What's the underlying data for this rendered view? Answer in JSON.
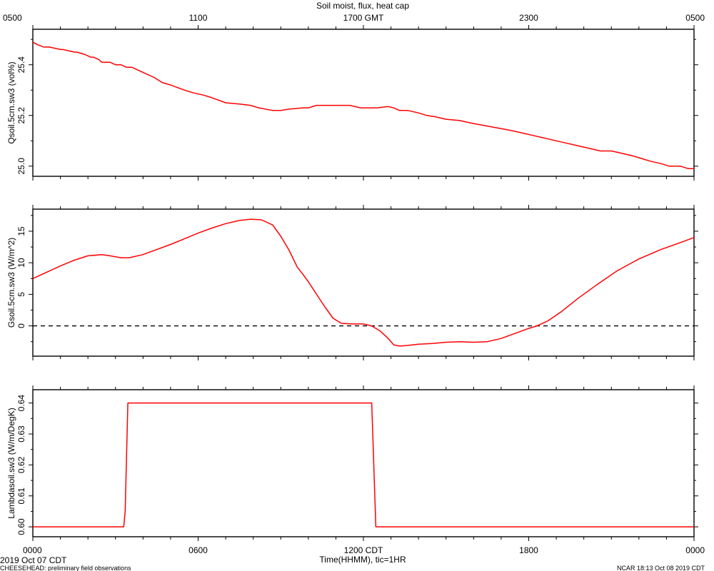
{
  "page": {
    "title": "Soil moist, flux, heat cap",
    "left_footer_date": "2019 Oct 07 CDT",
    "bottom_note": "CHEESEHEAD: preliminary field observations",
    "right_note": "NCAR 18:13 Oct 08 2019 CDT",
    "xlabel": "Time(HHMM), tic=1HR"
  },
  "colors": {
    "series": "#ff0000",
    "axis": "#000000",
    "zero_line": "#000000"
  },
  "chart_data": [
    {
      "type": "line",
      "x_axis_units": "hours since 0000 CDT 2019 Oct 07",
      "top_ticks": [
        {
          "x": 0,
          "label": "0500"
        },
        {
          "x": 6,
          "label": "1100"
        },
        {
          "x": 12,
          "label": "1700 GMT"
        },
        {
          "x": 18,
          "label": "2300"
        },
        {
          "x": 24,
          "label": "0500"
        }
      ],
      "ylabel": "Qsoil.5cm.sw3 (vol%)",
      "ylim": [
        24.96,
        25.54
      ],
      "yticks": [
        25.0,
        25.2,
        25.4
      ],
      "ytick_labels": [
        "25.0",
        "25.2",
        "25.4"
      ],
      "series": [
        {
          "x": [
            0,
            0.15,
            0.4,
            0.6,
            1.0,
            1.1,
            1.5,
            1.6,
            1.9,
            2.1,
            2.2,
            2.4,
            2.5,
            2.8,
            3.0,
            3.2,
            3.4,
            3.6,
            4.0,
            4.4,
            4.7,
            5.0,
            5.5,
            5.8,
            6.2,
            6.5,
            7.0,
            7.5,
            7.9,
            8.2,
            8.7,
            9.0,
            9.3,
            9.8,
            10.0,
            10.3,
            10.6,
            10.9,
            11.5,
            11.9,
            12.0,
            12.5,
            12.9,
            13.1,
            13.3,
            13.6,
            14.0,
            14.3,
            14.6,
            15.0,
            15.5,
            15.9,
            16.4,
            16.9,
            17.4,
            17.8,
            18.2,
            18.6,
            19.0,
            19.4,
            19.8,
            20.2,
            20.6,
            21.0,
            21.4,
            21.8,
            22.1,
            22.4,
            22.8,
            23.1,
            23.5,
            23.8,
            24.0
          ],
          "values": [
            25.49,
            25.48,
            25.47,
            25.47,
            25.46,
            25.46,
            25.45,
            25.45,
            25.44,
            25.43,
            25.43,
            25.42,
            25.41,
            25.41,
            25.4,
            25.4,
            25.39,
            25.39,
            25.37,
            25.35,
            25.33,
            25.32,
            25.3,
            25.29,
            25.28,
            25.27,
            25.25,
            25.245,
            25.24,
            25.23,
            25.22,
            25.22,
            25.225,
            25.23,
            25.23,
            25.24,
            25.24,
            25.24,
            25.24,
            25.23,
            25.23,
            25.23,
            25.235,
            25.23,
            25.22,
            25.22,
            25.21,
            25.2,
            25.195,
            25.185,
            25.18,
            25.17,
            25.16,
            25.15,
            25.14,
            25.13,
            25.12,
            25.11,
            25.1,
            25.09,
            25.08,
            25.07,
            25.06,
            25.06,
            25.05,
            25.04,
            25.03,
            25.02,
            25.01,
            25.0,
            25.0,
            24.99,
            24.99
          ]
        }
      ]
    },
    {
      "type": "line",
      "ylabel": "Gsoil.5cm.sw3 (W/m^2)",
      "ylim": [
        -4.8,
        18.5
      ],
      "yticks": [
        0,
        5,
        10,
        15
      ],
      "ytick_labels": [
        "0",
        "5",
        "10",
        "15"
      ],
      "zero_line": true,
      "series": [
        {
          "x": [
            0,
            0.5,
            1.0,
            1.5,
            2.0,
            2.5,
            2.8,
            3.2,
            3.5,
            4.0,
            4.5,
            5.0,
            5.5,
            6.0,
            6.5,
            7.0,
            7.5,
            7.9,
            8.3,
            8.7,
            9.0,
            9.3,
            9.6,
            9.8,
            10.0,
            10.3,
            10.6,
            10.9,
            11.2,
            11.6,
            12.0,
            12.3,
            12.6,
            12.9,
            13.1,
            13.3,
            13.6,
            14.0,
            14.5,
            15.0,
            15.5,
            16.0,
            16.5,
            17.0,
            17.5,
            18.0,
            18.3,
            18.7,
            19.2,
            19.8,
            20.5,
            21.2,
            22.0,
            22.8,
            23.5,
            24.0
          ],
          "values": [
            7.5,
            8.5,
            9.5,
            10.4,
            11.1,
            11.3,
            11.1,
            10.8,
            10.8,
            11.3,
            12.1,
            12.9,
            13.8,
            14.7,
            15.5,
            16.2,
            16.7,
            16.9,
            16.8,
            16.0,
            14.2,
            12.0,
            9.3,
            8.2,
            7.0,
            5.0,
            3.0,
            1.2,
            0.4,
            0.3,
            0.3,
            0.0,
            -0.8,
            -2.0,
            -3.0,
            -3.2,
            -3.1,
            -2.9,
            -2.8,
            -2.6,
            -2.5,
            -2.6,
            -2.5,
            -2.0,
            -1.2,
            -0.4,
            0.0,
            0.8,
            2.3,
            4.4,
            6.6,
            8.7,
            10.6,
            12.1,
            13.2,
            14.0
          ]
        }
      ]
    },
    {
      "type": "line",
      "ylabel": "Lambdasoil.sw3 (W/m/DegK)",
      "ylim": [
        0.5968,
        0.6443
      ],
      "yticks": [
        0.6,
        0.61,
        0.62,
        0.63,
        0.64
      ],
      "ytick_labels": [
        "0.60",
        "0.61",
        "0.62",
        "0.63",
        "0.64"
      ],
      "bottom_ticks": [
        {
          "x": 0,
          "label": "0000"
        },
        {
          "x": 6,
          "label": "0600"
        },
        {
          "x": 12,
          "label": "1200 CDT"
        },
        {
          "x": 18,
          "label": "1800"
        },
        {
          "x": 24,
          "label": "0000"
        }
      ],
      "series": [
        {
          "x": [
            0,
            3.3,
            3.35,
            3.45,
            12.3,
            12.35,
            12.45,
            24.0
          ],
          "values": [
            0.6,
            0.6,
            0.605,
            0.64,
            0.64,
            0.627,
            0.6,
            0.6
          ]
        }
      ]
    }
  ]
}
